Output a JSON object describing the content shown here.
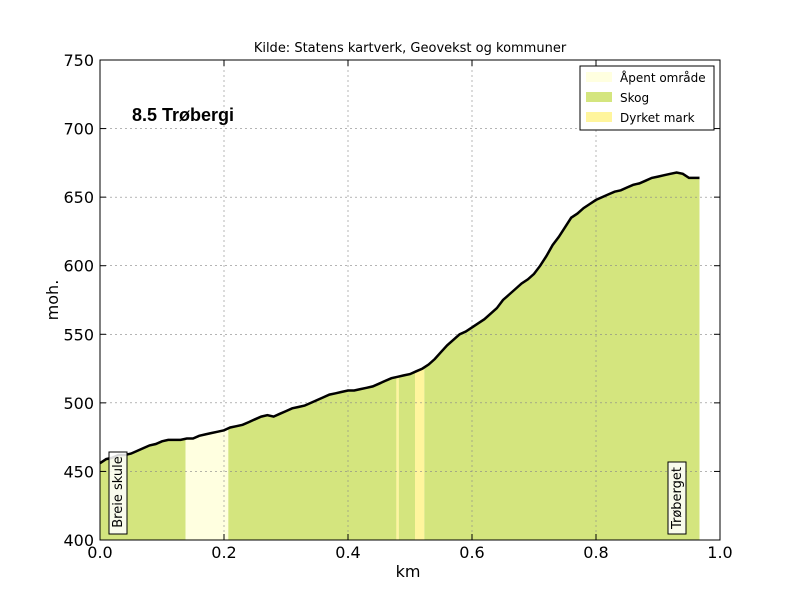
{
  "chart_data": {
    "type": "area",
    "title": "Kilde: Statens kartverk, Geovekst og kommuner",
    "annotation_title": "8.5 Trøbergi",
    "xlabel": "km",
    "ylabel": "moh.",
    "xlim": [
      0.0,
      1.0
    ],
    "ylim": [
      400,
      750
    ],
    "xticks": [
      "0.0",
      "0.2",
      "0.4",
      "0.6",
      "0.8",
      "1.0"
    ],
    "yticks": [
      "400",
      "450",
      "500",
      "550",
      "600",
      "650",
      "700",
      "750"
    ],
    "grid": true,
    "legend_position": "top-right",
    "legend": [
      {
        "label": "Åpent område",
        "color": "#ffffe0"
      },
      {
        "label": "Skog",
        "color": "#d4e57e"
      },
      {
        "label": "Dyrket mark",
        "color": "#fff59d"
      }
    ],
    "start_label": "Breie skule",
    "end_label": "Trøberget",
    "land_cover": [
      {
        "from": 0.0,
        "to": 0.138,
        "type": "Skog"
      },
      {
        "from": 0.138,
        "to": 0.207,
        "type": "Åpent område"
      },
      {
        "from": 0.207,
        "to": 0.478,
        "type": "Skog"
      },
      {
        "from": 0.478,
        "to": 0.482,
        "type": "Dyrket mark"
      },
      {
        "from": 0.482,
        "to": 0.508,
        "type": "Skog"
      },
      {
        "from": 0.508,
        "to": 0.523,
        "type": "Dyrket mark"
      },
      {
        "from": 0.523,
        "to": 0.967,
        "type": "Skog"
      }
    ],
    "elevation": {
      "x": [
        0.0,
        0.01,
        0.02,
        0.03,
        0.04,
        0.05,
        0.06,
        0.07,
        0.08,
        0.09,
        0.1,
        0.11,
        0.12,
        0.13,
        0.14,
        0.15,
        0.16,
        0.17,
        0.18,
        0.19,
        0.2,
        0.21,
        0.22,
        0.23,
        0.24,
        0.25,
        0.26,
        0.27,
        0.28,
        0.29,
        0.3,
        0.31,
        0.32,
        0.33,
        0.34,
        0.35,
        0.36,
        0.37,
        0.38,
        0.39,
        0.4,
        0.41,
        0.42,
        0.43,
        0.44,
        0.45,
        0.46,
        0.47,
        0.48,
        0.49,
        0.5,
        0.51,
        0.52,
        0.53,
        0.54,
        0.55,
        0.56,
        0.57,
        0.58,
        0.59,
        0.6,
        0.61,
        0.62,
        0.63,
        0.64,
        0.65,
        0.66,
        0.67,
        0.68,
        0.69,
        0.7,
        0.71,
        0.72,
        0.73,
        0.74,
        0.75,
        0.76,
        0.77,
        0.78,
        0.79,
        0.8,
        0.81,
        0.82,
        0.83,
        0.84,
        0.85,
        0.86,
        0.87,
        0.88,
        0.89,
        0.9,
        0.91,
        0.92,
        0.93,
        0.94,
        0.95,
        0.96,
        0.967
      ],
      "y": [
        456,
        459,
        460,
        462,
        462,
        463,
        465,
        467,
        469,
        470,
        472,
        473,
        473,
        473,
        474,
        474,
        476,
        477,
        478,
        479,
        480,
        482,
        483,
        484,
        486,
        488,
        490,
        491,
        490,
        492,
        494,
        496,
        497,
        498,
        500,
        502,
        504,
        506,
        507,
        508,
        509,
        509,
        510,
        511,
        512,
        514,
        516,
        518,
        519,
        520,
        521,
        523,
        525,
        528,
        532,
        537,
        542,
        546,
        550,
        552,
        555,
        558,
        561,
        565,
        569,
        575,
        579,
        583,
        587,
        590,
        594,
        600,
        607,
        615,
        621,
        628,
        635,
        638,
        642,
        645,
        648,
        650,
        652,
        654,
        655,
        657,
        659,
        660,
        662,
        664,
        665,
        666,
        667,
        668,
        667,
        664,
        664,
        664
      ]
    }
  }
}
